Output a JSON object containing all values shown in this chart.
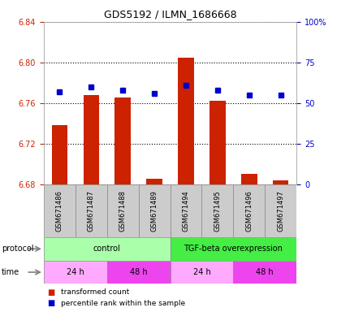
{
  "title": "GDS5192 / ILMN_1686668",
  "samples": [
    "GSM671486",
    "GSM671487",
    "GSM671488",
    "GSM671489",
    "GSM671494",
    "GSM671495",
    "GSM671496",
    "GSM671497"
  ],
  "red_values": [
    6.738,
    6.768,
    6.765,
    6.685,
    6.805,
    6.762,
    6.69,
    6.684
  ],
  "blue_values": [
    57,
    60,
    58,
    56,
    61,
    58,
    55,
    55
  ],
  "ylim_left": [
    6.68,
    6.84
  ],
  "ylim_right": [
    0,
    100
  ],
  "yticks_left": [
    6.68,
    6.72,
    6.76,
    6.8,
    6.84
  ],
  "yticks_right": [
    0,
    25,
    50,
    75,
    100
  ],
  "ytick_labels_left": [
    "6.68",
    "6.72",
    "6.76",
    "6.80",
    "6.84"
  ],
  "ytick_labels_right": [
    "0",
    "25",
    "50",
    "75",
    "100%"
  ],
  "bar_color": "#cc2200",
  "dot_color": "#0000cc",
  "grid_color": "#000000",
  "protocol_groups": [
    {
      "label": "control",
      "start": 0,
      "end": 4,
      "color": "#aaffaa"
    },
    {
      "label": "TGF-beta overexpression",
      "start": 4,
      "end": 8,
      "color": "#44ee44"
    }
  ],
  "time_groups": [
    {
      "label": "24 h",
      "start": 0,
      "end": 2,
      "color": "#ffaaff"
    },
    {
      "label": "48 h",
      "start": 2,
      "end": 4,
      "color": "#ee44ee"
    },
    {
      "label": "24 h",
      "start": 4,
      "end": 6,
      "color": "#ffaaff"
    },
    {
      "label": "48 h",
      "start": 6,
      "end": 8,
      "color": "#ee44ee"
    }
  ],
  "legend_red": "transformed count",
  "legend_blue": "percentile rank within the sample",
  "protocol_label": "protocol",
  "time_label": "time",
  "tick_color_left": "#cc2200",
  "tick_color_right": "#0000cc",
  "bar_bottom": 6.68,
  "sample_bg_color": "#cccccc",
  "sample_box_color": "#888888"
}
